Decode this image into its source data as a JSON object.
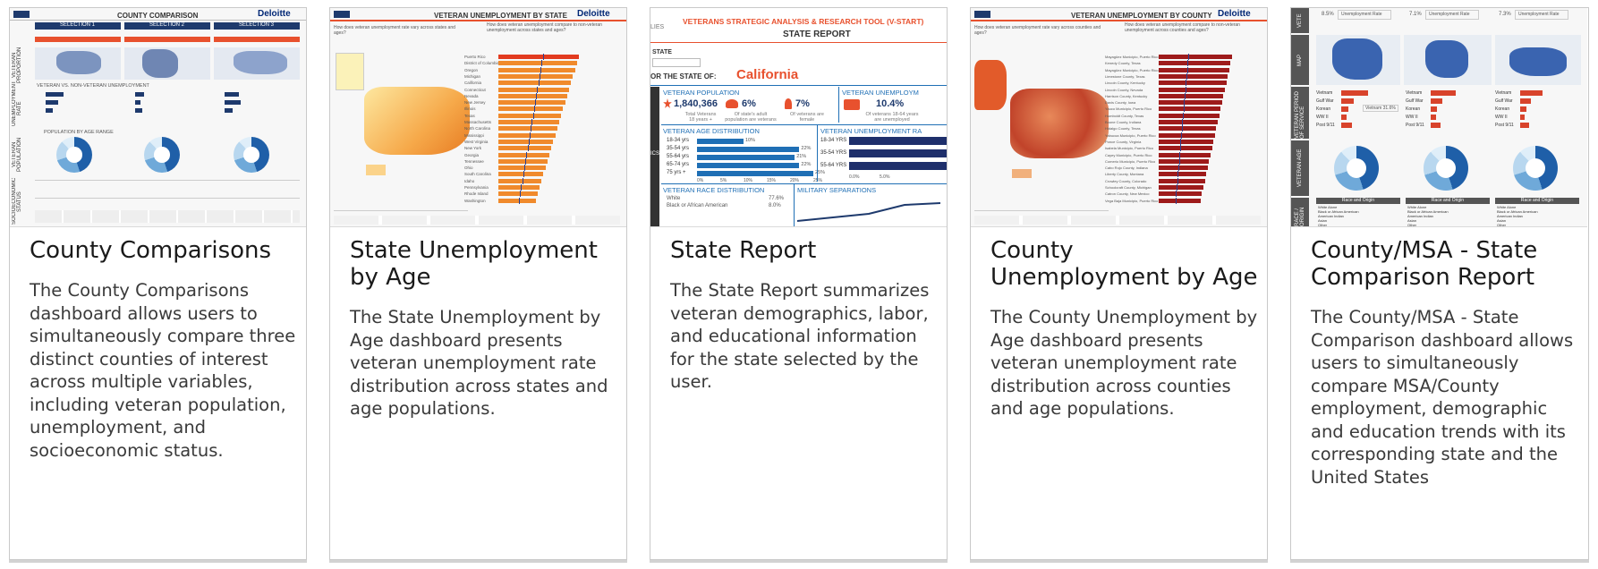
{
  "cards": [
    {
      "title": "County Comparisons",
      "description": "The County Comparisons dashboard allows users to simultaneously compare three distinct counties of interest across multiple variables, including veteran population, unemployment, and socioeconomic status.",
      "thumb": {
        "header": "COUNTY COMPARISON",
        "brand": "Deloitte",
        "selections": [
          "SELECTION 1",
          "SELECTION 2",
          "SELECTION 3"
        ],
        "chart_title": "VETERAN VS. NON-VETERAN UNEMPLOYMENT",
        "pop_title": "POPULATION BY AGE RANGE",
        "side_labels": [
          "VETERAN PROPORTION",
          "UNEMPLOYMENT RATE",
          "VETERAN POPULATION",
          "SOCIOECONOMIC STATUS"
        ]
      }
    },
    {
      "title": "State Unemployment by Age",
      "description": "The State Unemployment by Age dashboard presents veteran unemployment rate distribution across states and age populations.",
      "thumb": {
        "header": "VETERAN UNEMPLOYMENT BY STATE",
        "brand": "Deloitte",
        "q1": "How does veteran unemployment rate vary across states and ages?",
        "q2": "How does veteran unemployment compare to non-veteran unemployment across states and ages?",
        "states": [
          "Puerto Rico",
          "District of Columbia",
          "Oregon",
          "Michigan",
          "California",
          "Connecticut",
          "Nevada",
          "New Jersey",
          "Illinois",
          "Texas",
          "Massachusetts",
          "North Carolina",
          "Mississippi",
          "West Virginia",
          "New York",
          "Georgia",
          "Tennessee",
          "Ohio",
          "South Carolina",
          "Idaho",
          "Pennsylvania",
          "Rhode Island",
          "Washington"
        ]
      }
    },
    {
      "title": "State Report",
      "description": "The State Report summarizes veteran demographics, labor, and educational information for the state selected by the user.",
      "thumb": {
        "tool_title": "VETERANS STRATEGIC ANALYSIS & RESEARCH TOOL (V-START)",
        "report_title": "STATE REPORT",
        "state_label": "STATE",
        "for_state": "OR THE STATE OF:",
        "state_name": "California",
        "vet_pop_label": "VETERAN POPULATION",
        "vet_pop_value": "1,840,366",
        "vet_pop_sub": "Total Veterans 18 years +",
        "pct1": "6%",
        "pct1_sub": "Of state's adult population are veterans",
        "pct2": "7%",
        "pct2_sub": "Of veterans are female",
        "unemp_label": "VETERAN UNEMPLOYM",
        "unemp_value": "10.4%",
        "unemp_sub": "Of veterans 18-64 years are unemployed",
        "age_dist_title": "VETERAN AGE DISTRIBUTION",
        "age_rows": [
          {
            "label": "18-34 yrs",
            "pct": "10%"
          },
          {
            "label": "35-54 yrs",
            "pct": "22%"
          },
          {
            "label": "55-64 yrs",
            "pct": "21%"
          },
          {
            "label": "65-74 yrs",
            "pct": "22%"
          },
          {
            "label": "75 yrs +",
            "pct": "25%"
          }
        ],
        "age_axis": [
          "0%",
          "5%",
          "10%",
          "15%",
          "20%",
          "25%"
        ],
        "unemp_rate_title": "VETERAN UNEMPLOYMENT RA",
        "unemp_rows": [
          "18-34 YRS",
          "35-54 YRS",
          "55-64 YRS"
        ],
        "unemp_axis": [
          "0.0%",
          "5.0%"
        ],
        "race_title": "VETERAN RACE DISTRIBUTION",
        "race_rows": [
          {
            "label": "White",
            "pct": "77.6%"
          },
          {
            "label": "Black or African American",
            "pct": "8.0%"
          }
        ],
        "mil_title": "MILITARY SEPARATIONS",
        "left_strip": "LIES",
        "left_strip2": "ICS"
      }
    },
    {
      "title": "County Unemployment by Age",
      "description": "The County Unemployment by Age dashboard presents veteran unemployment rate distribution across counties and age populations.",
      "thumb": {
        "header": "VETERAN UNEMPLOYMENT BY COUNTY",
        "brand": "Deloitte",
        "q1": "How does veteran unemployment rate vary across counties and ages?",
        "q2": "How does veteran unemployment compare to non-veteran unemployment across counties and ages?",
        "counties": [
          "Mayagüez Municipio, Puerto Rico",
          "Kenedy County, Texas",
          "Mayagüez Municipio, Puerto Rico",
          "Limestone County, Texas",
          "Lincoln County, Kentucky",
          "Lincoln County, Nevada",
          "Harrison County, Kentucky",
          "Davis County, Iowa",
          "Yauco Municipio, Puerto Rico",
          "Humboldt County, Texas",
          "Boone County, Indiana",
          "Hidalgo County, Texas",
          "Yabucoa Municipio, Puerto Rico",
          "Ponce County, Virginia",
          "Isabela Municipio, Puerto Rico",
          "Cayey Municipio, Puerto Rico",
          "Comerio Municipio, Puerto Rico",
          "Cabo Rojo County, Indiana",
          "Liberty County, Montana",
          "Crowley County, Colorado",
          "Schoolcraft County, Michigan",
          "Catron County, New Mexico",
          "Vega Baja Municipio, Puerto Rico"
        ]
      }
    },
    {
      "title": "County/MSA - State Comparison Report",
      "description": "The County/MSA - State Comparison dashboard allows users to simultaneously compare MSA/County employment, demographic and education trends with its corresponding state and the United States",
      "thumb": {
        "side_labels": [
          "VETE",
          "MAP",
          "VETERAN PERIOD OF SERVICE",
          "VETERAN AGE",
          "RACE / ORIGIN"
        ],
        "top_values": [
          "8.5%",
          "7.1%",
          "7.3%"
        ],
        "top_label": "Unemployment Rate",
        "service_rows": [
          "Vietnam",
          "Gulf War",
          "Korean",
          "WW II",
          "Post 9/11"
        ],
        "service_note": "Vietnam 31.6%",
        "race_header": "Race and Origin",
        "race_rows": [
          "White Alone",
          "Black or African American",
          "American Indian",
          "Asian",
          "Other"
        ]
      }
    }
  ],
  "colors": {
    "accent_orange": "#e8512e",
    "navy": "#1e3a6d",
    "deloitte_blue": "#002776",
    "bar_dark_red": "#9e1b1b",
    "report_blue": "#1f6fb5",
    "map_blue": "#3a64b0"
  }
}
